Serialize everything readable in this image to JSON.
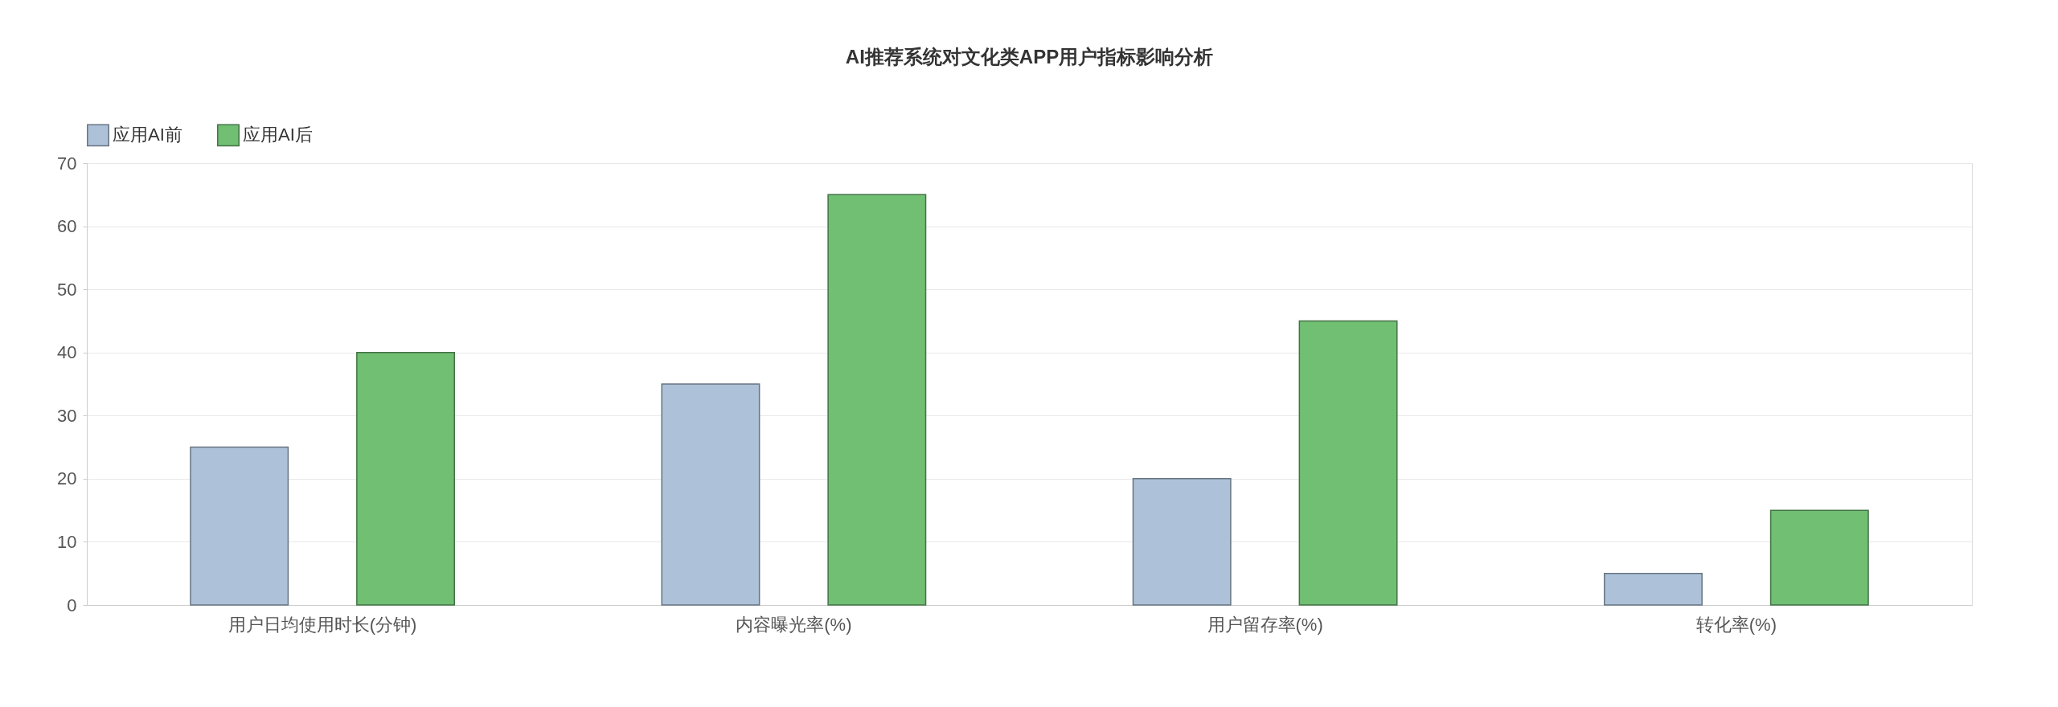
{
  "chart_data": {
    "type": "bar",
    "title": "AI推荐系统对文化类APP用户指标影响分析",
    "categories": [
      "用户日均使用时长(分钟)",
      "内容曝光率(%)",
      "用户留存率(%)",
      "转化率(%)"
    ],
    "series": [
      {
        "name": "应用AI前",
        "color": "#adc2d8",
        "values": [
          25,
          35,
          20,
          5
        ]
      },
      {
        "name": "应用AI后",
        "color": "#70bf73",
        "values": [
          40,
          65,
          45,
          15
        ]
      }
    ],
    "ylim": [
      0,
      70
    ],
    "yticks": [
      0,
      10,
      20,
      30,
      40,
      50,
      60,
      70
    ],
    "grid": "y",
    "legend": "top"
  }
}
